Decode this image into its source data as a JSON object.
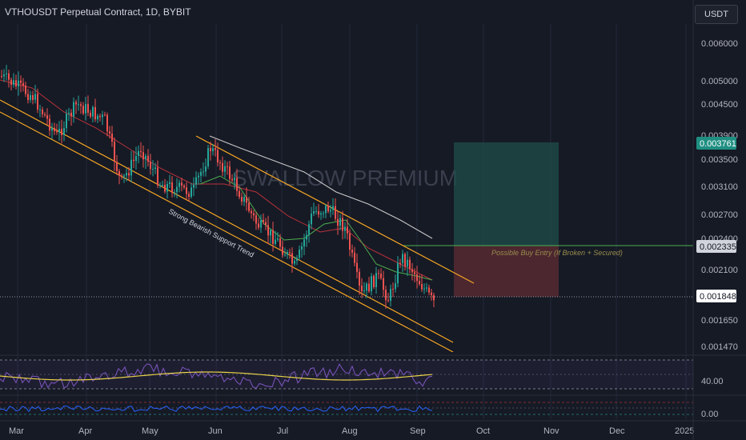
{
  "header": {
    "title": "VTHOUSDT Perpetual Contract, 1D, BYBIT",
    "currency_button": "USDT"
  },
  "watermark": "SWALLOW PREMIUM",
  "colors": {
    "background": "#161a25",
    "up": "#26a69a",
    "down": "#ef5350",
    "channel": "#f6a623",
    "ma_red": "#b8323a",
    "ma_green": "#4caf50",
    "ma_white": "#c8c8c8",
    "rsi": "#7e57c2",
    "rsi_ma": "#e8d34a",
    "osc": "#2962ff",
    "tp_zone": "#1f4e4a",
    "sl_zone": "#5a2a32",
    "entry_line": "#4caf50"
  },
  "chart_data": {
    "type": "candlestick",
    "y_scale": "log",
    "ylim": [
      0.00138,
      0.0068
    ],
    "y_ticks": [
      "0.006000",
      "0.005000",
      "0.004500",
      "0.003900",
      "0.003500",
      "0.003100",
      "0.002700",
      "0.002400",
      "0.002100",
      "0.001650",
      "0.001470"
    ],
    "x_ticks": [
      "Mar",
      "Apr",
      "May",
      "Jun",
      "Jul",
      "Aug",
      "Sep",
      "Oct",
      "Nov",
      "Dec",
      "2025"
    ],
    "price_labels": {
      "target": "0.003761",
      "entry": "0.002335",
      "current": "0.001848"
    },
    "annotations": {
      "support_label": "Strong Bearish Support Trend",
      "entry_label": "Possible Buy Entry (If Broken + Secured)"
    },
    "channel": {
      "upper": [
        [
          "2024-05-28",
          0.0037
        ],
        [
          "2024-09-22",
          0.00195
        ]
      ],
      "lower_a": [
        [
          "2024-02-26",
          0.0048
        ],
        [
          "2024-09-18",
          0.00139
        ]
      ],
      "lower_b": [
        [
          "2024-02-26",
          0.0046
        ],
        [
          "2024-09-18",
          0.00135
        ]
      ]
    },
    "position": {
      "start": "2024-09-16",
      "end": "2024-10-22",
      "target": 0.003761,
      "entry": 0.002335,
      "stop": 0.001848
    },
    "indicators": {
      "rsi_ticks": [
        "40.00"
      ],
      "oscillator_ticks": [
        "0.00"
      ]
    }
  }
}
